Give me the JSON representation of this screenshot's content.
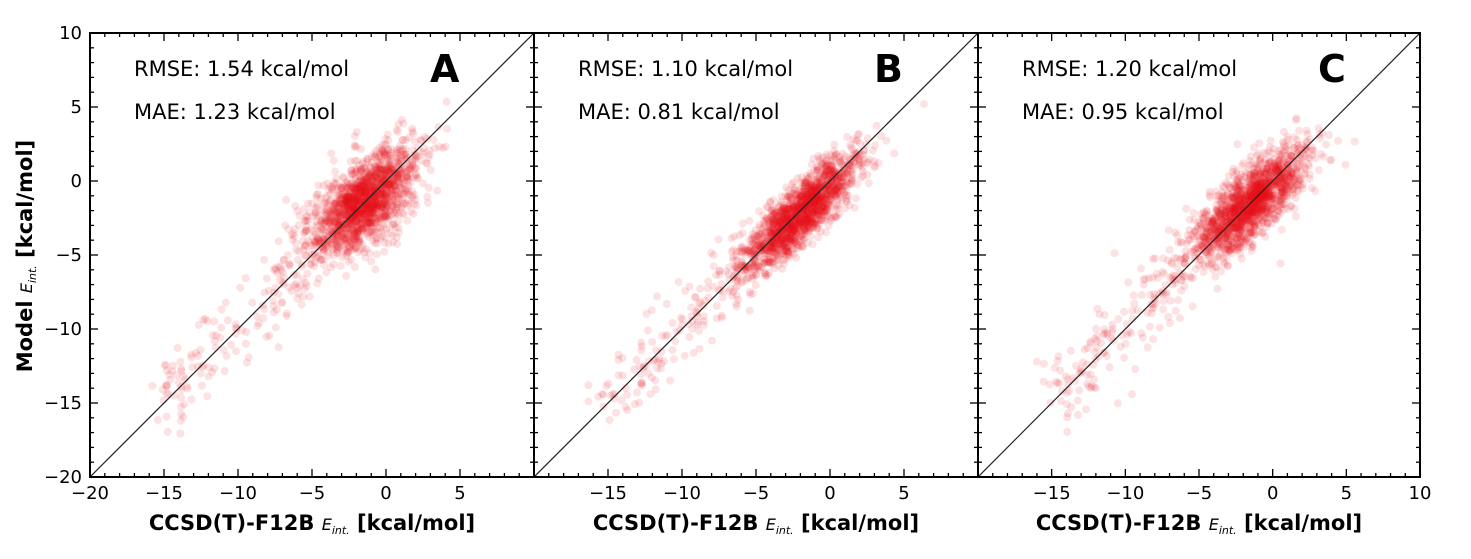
{
  "chart_data": {
    "type": "scatter",
    "point_color": "#e8141a",
    "point_opacity": 0.12,
    "shared_x_axis": {
      "title_main": "CCSD(T)-F12B",
      "title_sym": "E",
      "title_sub": "int.",
      "title_unit": "[kcal/mol]"
    },
    "shared_y_axis": {
      "title_main": "Model",
      "title_sym": "E",
      "title_sub": "int.",
      "title_unit": "[kcal/mol]",
      "ylim": [
        -20,
        10
      ],
      "yticks": [
        10,
        5,
        0,
        -5,
        -10,
        -15,
        -20
      ],
      "ytick_labels": [
        "10",
        "5",
        "0",
        "−5",
        "−10",
        "−15",
        "−20"
      ]
    },
    "panels": [
      {
        "label": "A",
        "rmse_text": "RMSE: 1.54 kcal/mol",
        "mae_text": "MAE: 1.23 kcal/mol",
        "rmse": 1.54,
        "mae": 1.23,
        "xlim": [
          -20,
          10
        ],
        "xticks": [
          -20,
          -15,
          -10,
          -5,
          0,
          5
        ],
        "xtick_labels": [
          "−20",
          "−15",
          "−10",
          "−5",
          "0",
          "5"
        ],
        "cluster": {
          "center": [
            -1.5,
            -1.5
          ],
          "spread_major": 2.3,
          "spread_minor": 1.1
        }
      },
      {
        "label": "B",
        "rmse_text": "RMSE: 1.10 kcal/mol",
        "mae_text": "MAE: 0.81 kcal/mol",
        "rmse": 1.1,
        "mae": 0.81,
        "xlim": [
          -20,
          10
        ],
        "xticks": [
          -15,
          -10,
          -5,
          0,
          5
        ],
        "xtick_labels": [
          "−15",
          "−10",
          "−5",
          "0",
          "5"
        ],
        "cluster": {
          "center": [
            -2.0,
            -2.2
          ],
          "spread_major": 2.6,
          "spread_minor": 0.75
        }
      },
      {
        "label": "C",
        "rmse_text": "RMSE: 1.20 kcal/mol",
        "mae_text": "MAE: 0.95 kcal/mol",
        "rmse": 1.2,
        "mae": 0.95,
        "xlim": [
          -20,
          10
        ],
        "xticks": [
          -15,
          -10,
          -5,
          0,
          5,
          10
        ],
        "xtick_labels": [
          "−15",
          "−10",
          "−5",
          "0",
          "5",
          "10"
        ],
        "cluster": {
          "center": [
            -1.5,
            -1.5
          ],
          "spread_major": 2.5,
          "spread_minor": 0.9
        }
      }
    ]
  }
}
